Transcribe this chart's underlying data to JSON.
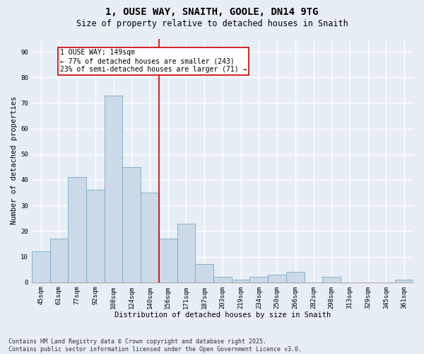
{
  "title": "1, OUSE WAY, SNAITH, GOOLE, DN14 9TG",
  "subtitle": "Size of property relative to detached houses in Snaith",
  "xlabel": "Distribution of detached houses by size in Snaith",
  "ylabel": "Number of detached properties",
  "categories": [
    "45sqm",
    "61sqm",
    "77sqm",
    "92sqm",
    "108sqm",
    "124sqm",
    "140sqm",
    "156sqm",
    "171sqm",
    "187sqm",
    "203sqm",
    "219sqm",
    "234sqm",
    "250sqm",
    "266sqm",
    "282sqm",
    "298sqm",
    "313sqm",
    "329sqm",
    "345sqm",
    "361sqm"
  ],
  "values": [
    12,
    17,
    41,
    36,
    73,
    45,
    35,
    17,
    23,
    7,
    2,
    1,
    2,
    3,
    4,
    0,
    2,
    0,
    0,
    0,
    1
  ],
  "bar_color": "#ccd9e8",
  "bar_edge_color": "#7aaac8",
  "background_color": "#e8eef5",
  "grid_color": "#ffffff",
  "vline_color": "#cc0000",
  "annotation_text": "1 OUSE WAY: 149sqm\n← 77% of detached houses are smaller (243)\n23% of semi-detached houses are larger (71) →",
  "annotation_box_color": "#cc0000",
  "ylim": [
    0,
    95
  ],
  "yticks": [
    0,
    10,
    20,
    30,
    40,
    50,
    60,
    70,
    80,
    90
  ],
  "footnote": "Contains HM Land Registry data © Crown copyright and database right 2025.\nContains public sector information licensed under the Open Government Licence v3.0.",
  "title_fontsize": 10,
  "subtitle_fontsize": 8.5,
  "axis_label_fontsize": 7.5,
  "tick_fontsize": 6.5,
  "footnote_fontsize": 6,
  "annotation_fontsize": 7
}
